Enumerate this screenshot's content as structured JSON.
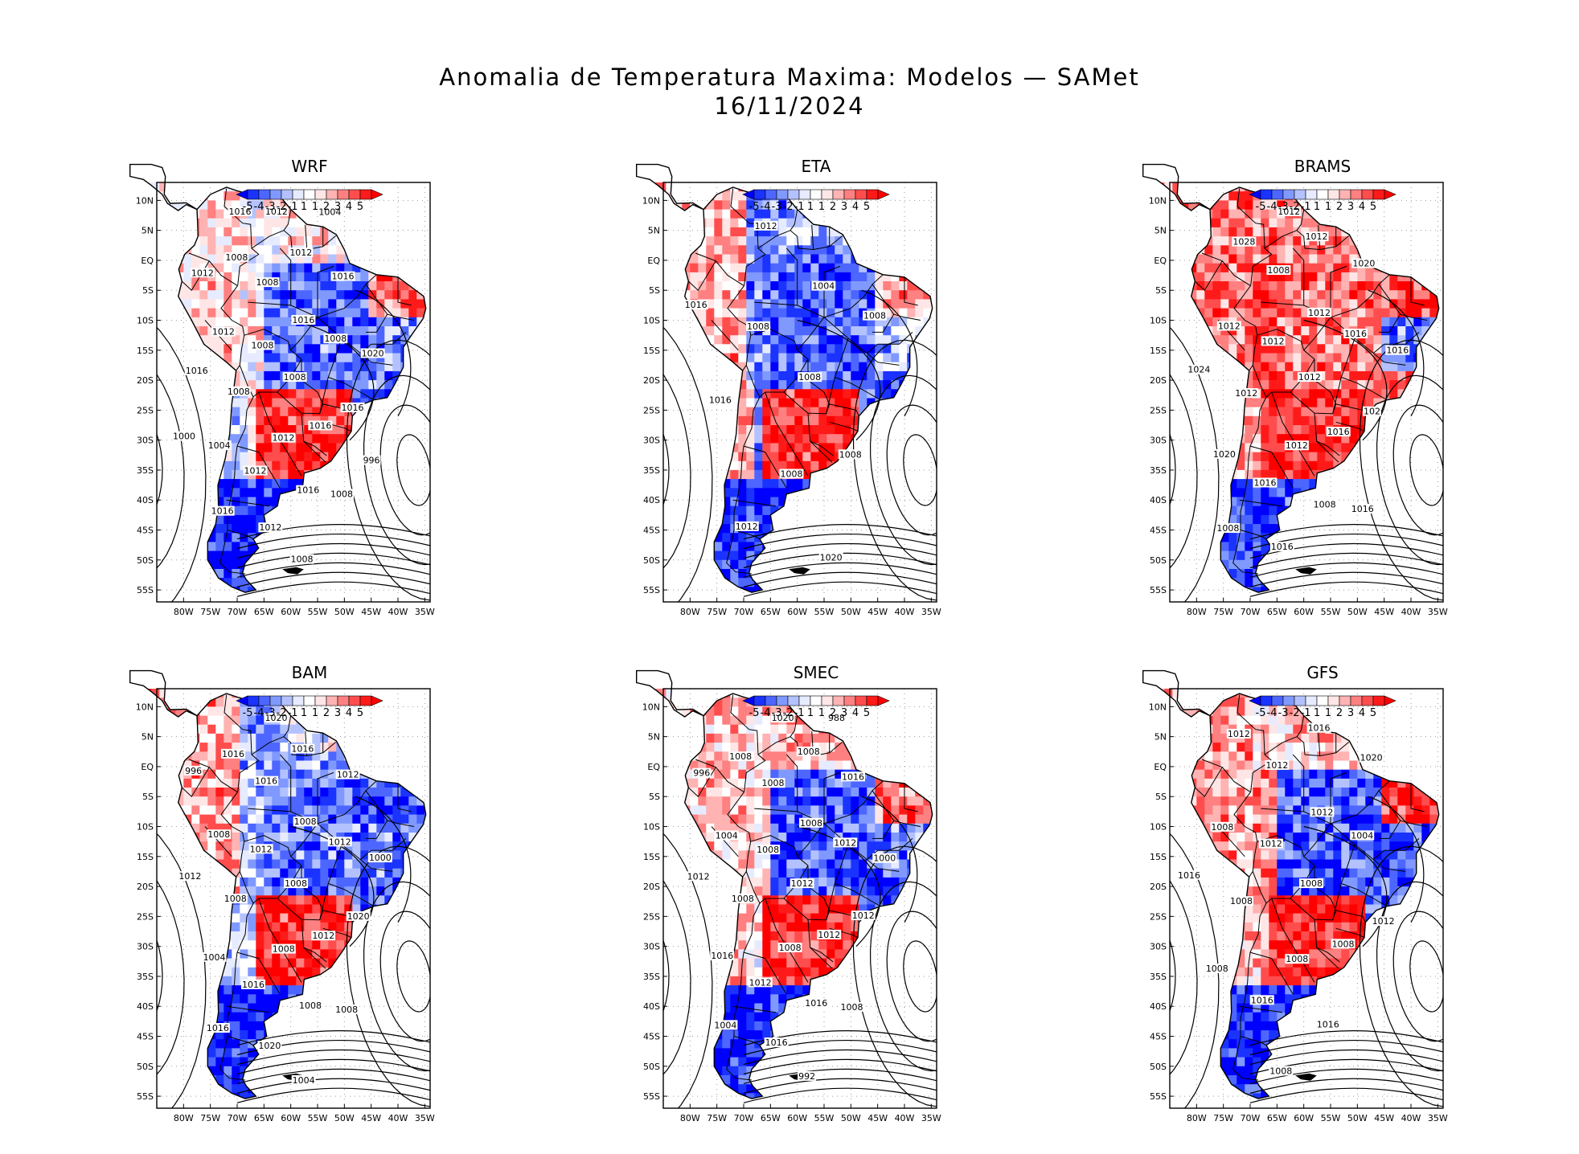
{
  "title": {
    "line1": "Anomalia de Temperatura Maxima: Modelos — SAMet",
    "line2": "16/11/2024"
  },
  "colorbar": {
    "labels": [
      "-5",
      "-4",
      "-3",
      "-2",
      "-1",
      "1",
      "1",
      "2",
      "3",
      "4",
      "5"
    ],
    "colors": [
      "#0000ff",
      "#1a33ff",
      "#4d66ff",
      "#8099ff",
      "#b3c2ff",
      "#e6ebff",
      "#ffffff",
      "#ffe6e6",
      "#ffb3b3",
      "#ff8080",
      "#ff4d4d",
      "#ff1a1a",
      "#ff0000"
    ]
  },
  "axes": {
    "lat_labels": [
      "10N",
      "5N",
      "EQ",
      "5S",
      "10S",
      "15S",
      "20S",
      "25S",
      "30S",
      "35S",
      "40S",
      "45S",
      "50S",
      "55S"
    ],
    "lon_labels": [
      "80W",
      "75W",
      "70W",
      "65W",
      "60W",
      "55W",
      "50W",
      "45W",
      "40W",
      "35W"
    ]
  },
  "models": [
    {
      "name": "WRF",
      "isobars": [
        "1008",
        "1008",
        "1012",
        "1016",
        "1008",
        "1016",
        "1008",
        "1012",
        "1008",
        "1012",
        "1016",
        "1012",
        "1004",
        "1016",
        "1008",
        "1012",
        "1016",
        "1016",
        "1008",
        "1012",
        "1016",
        "1020",
        "1012",
        "1008",
        "1004",
        "1000",
        "996",
        "1016"
      ],
      "anomaly": {
        "north": 0.2,
        "west_amazon": 0.5,
        "central": -3.5,
        "northeast": 3.0,
        "east": -3.0,
        "south": 4.5,
        "andes": -1.0,
        "patagonia": -5.0,
        "pacific_coast": 1.0,
        "north_coast": 1.5
      }
    },
    {
      "name": "ETA",
      "isobars": [
        "1008",
        "1008",
        "1008",
        "1004",
        "1016",
        "1008",
        "1012",
        "1012",
        "1008",
        "1016",
        "1020"
      ],
      "anomaly": {
        "north": -3.0,
        "west_amazon": -3.0,
        "central": -4.0,
        "northeast": 2.0,
        "east": -2.0,
        "south": 4.5,
        "andes": 1.5,
        "patagonia": -5.0,
        "pacific_coast": 2.0,
        "north_coast": -1.0
      }
    },
    {
      "name": "BRAMS",
      "isobars": [
        "1012",
        "1012",
        "1012",
        "1012",
        "1012",
        "1016",
        "1008",
        "1016",
        "1016",
        "1012",
        "1008",
        "1012",
        "1020",
        "102",
        "1028",
        "1016",
        "1020",
        "1024",
        "1016",
        "1012",
        "1008",
        "1016"
      ],
      "anomaly": {
        "north": 3.0,
        "west_amazon": 4.5,
        "central": 3.0,
        "northeast": 4.0,
        "east": -3.5,
        "south": 4.5,
        "andes": 2.0,
        "patagonia": -4.5,
        "pacific_coast": 3.0,
        "north_coast": 2.5
      }
    },
    {
      "name": "BAM",
      "isobars": [
        "1008",
        "1012",
        "1008",
        "1008",
        "1008",
        "1012",
        "1016",
        "1016",
        "1012",
        "1008",
        "1008",
        "1016",
        "1004",
        "1020",
        "1016",
        "1020",
        "1012",
        "1012",
        "1008",
        "1020",
        "1016",
        "1000",
        "996",
        "1004"
      ],
      "anomaly": {
        "north": -2.5,
        "west_amazon": -2.0,
        "central": -3.5,
        "northeast": -4.0,
        "east": -3.0,
        "south": 4.5,
        "andes": -2.0,
        "patagonia": -5.0,
        "pacific_coast": 2.0,
        "north_coast": 1.0
      }
    },
    {
      "name": "SMEC",
      "isobars": [
        "1012",
        "1008",
        "1008",
        "1008",
        "1008",
        "1012",
        "1008",
        "1012",
        "1012",
        "1004",
        "1016",
        "1008",
        "1016",
        "1012",
        "1008",
        "1016",
        "1016",
        "1012",
        "1008",
        "1020",
        "1004",
        "1000",
        "996",
        "992",
        "988"
      ],
      "anomaly": {
        "north": 1.0,
        "west_amazon": 0.8,
        "central": -4.0,
        "northeast": 3.5,
        "east": -3.0,
        "south": 4.5,
        "andes": 1.5,
        "patagonia": -5.0,
        "pacific_coast": 1.5,
        "north_coast": 2.5
      }
    },
    {
      "name": "GFS",
      "isobars": [
        "1008",
        "1012",
        "1008",
        "1012",
        "1008",
        "1008",
        "1012",
        "1016",
        "1004",
        "1008",
        "1016",
        "1016",
        "1008",
        "1012",
        "1012",
        "1008",
        "1020",
        "1016"
      ],
      "anomaly": {
        "north": 0.5,
        "west_amazon": 2.5,
        "central": -4.0,
        "northeast": 4.0,
        "east": -3.5,
        "south": 4.5,
        "andes": 1.5,
        "patagonia": -5.0,
        "pacific_coast": 2.0,
        "north_coast": 3.0
      }
    }
  ]
}
